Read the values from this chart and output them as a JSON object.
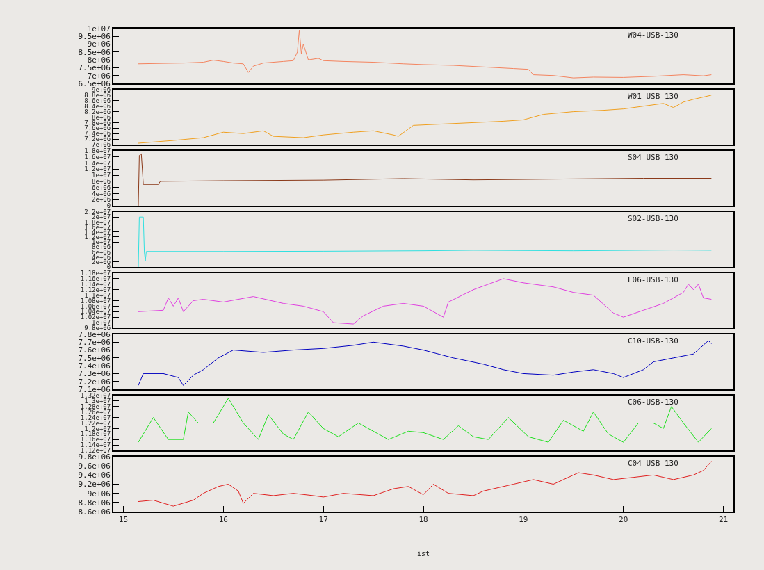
{
  "chart_data": [
    {
      "type": "line",
      "tick_labels": "y",
      "grid": false,
      "xlim": [
        14.9,
        21.1
      ],
      "ylim": [
        6500000,
        10000000
      ],
      "yticks": [
        {
          "value": 6500000,
          "label": "6.5e+06"
        },
        {
          "value": 7000000,
          "label": "7e+06"
        },
        {
          "value": 7500000,
          "label": "7.5e+06"
        },
        {
          "value": 8000000,
          "label": "8e+06"
        },
        {
          "value": 8500000,
          "label": "8.5e+06"
        },
        {
          "value": 9000000,
          "label": "9e+06"
        },
        {
          "value": 9500000,
          "label": "9.5e+06"
        },
        {
          "value": 10000000,
          "label": "1e+07"
        }
      ],
      "series": [
        {
          "name": "W04-USB-130",
          "color": "#f4845f",
          "x": [
            15.15,
            15.4,
            15.6,
            15.8,
            15.9,
            16.0,
            16.1,
            16.2,
            16.25,
            16.3,
            16.4,
            16.6,
            16.7,
            16.74,
            16.76,
            16.78,
            16.8,
            16.85,
            16.95,
            17.0,
            17.2,
            17.5,
            17.8,
            18.0,
            18.3,
            18.6,
            18.9,
            19.05,
            19.1,
            19.3,
            19.5,
            19.7,
            20.0,
            20.3,
            20.6,
            20.8,
            20.88
          ],
          "values": [
            7750000,
            7780000,
            7800000,
            7850000,
            7980000,
            7900000,
            7800000,
            7750000,
            7200000,
            7600000,
            7800000,
            7900000,
            7950000,
            8500000,
            9900000,
            8400000,
            9000000,
            8000000,
            8100000,
            7950000,
            7900000,
            7850000,
            7750000,
            7700000,
            7650000,
            7550000,
            7450000,
            7400000,
            7050000,
            7000000,
            6850000,
            6900000,
            6880000,
            6950000,
            7050000,
            6980000,
            7050000
          ]
        }
      ]
    },
    {
      "type": "line",
      "tick_labels": "y",
      "grid": false,
      "xlim": [
        14.9,
        21.1
      ],
      "ylim": [
        7000000,
        9000000
      ],
      "yticks": [
        {
          "value": 7000000,
          "label": "7e+06"
        },
        {
          "value": 7200000,
          "label": "7.2e+06"
        },
        {
          "value": 7400000,
          "label": "7.4e+06"
        },
        {
          "value": 7600000,
          "label": "7.6e+06"
        },
        {
          "value": 7800000,
          "label": "7.8e+06"
        },
        {
          "value": 8000000,
          "label": "8e+06"
        },
        {
          "value": 8200000,
          "label": "8.2e+06"
        },
        {
          "value": 8400000,
          "label": "8.4e+06"
        },
        {
          "value": 8600000,
          "label": "8.6e+06"
        },
        {
          "value": 8800000,
          "label": "8.8e+06"
        },
        {
          "value": 9000000,
          "label": "9e+06"
        }
      ],
      "series": [
        {
          "name": "W01-USB-130",
          "color": "#f0a020",
          "x": [
            15.15,
            15.5,
            15.8,
            16.0,
            16.2,
            16.4,
            16.5,
            16.8,
            17.0,
            17.3,
            17.5,
            17.7,
            17.75,
            17.9,
            18.2,
            18.5,
            18.8,
            19.0,
            19.2,
            19.5,
            19.8,
            20.0,
            20.2,
            20.4,
            20.5,
            20.6,
            20.7,
            20.88
          ],
          "values": [
            7050000,
            7150000,
            7250000,
            7450000,
            7400000,
            7500000,
            7300000,
            7250000,
            7350000,
            7450000,
            7500000,
            7350000,
            7300000,
            7700000,
            7750000,
            7800000,
            7850000,
            7900000,
            8100000,
            8200000,
            8250000,
            8300000,
            8400000,
            8500000,
            8350000,
            8550000,
            8650000,
            8800000
          ]
        }
      ]
    },
    {
      "type": "line",
      "tick_labels": "y",
      "grid": false,
      "xlim": [
        14.9,
        21.1
      ],
      "ylim": [
        0,
        18000000
      ],
      "yticks": [
        0,
        {
          "value": 2000000,
          "label": "2e+06"
        },
        {
          "value": 4000000,
          "label": "4e+06"
        },
        {
          "value": 6000000,
          "label": "6e+06"
        },
        {
          "value": 8000000,
          "label": "8e+06"
        },
        {
          "value": 10000000,
          "label": "1e+07"
        },
        {
          "value": 12000000,
          "label": "1.2e+07"
        },
        {
          "value": 14000000,
          "label": "1.4e+07"
        },
        {
          "value": 16000000,
          "label": "1.6e+07"
        },
        {
          "value": 18000000,
          "label": "1.8e+07"
        }
      ],
      "series": [
        {
          "name": "S04-USB-130",
          "color": "#8b3a1a",
          "x": [
            15.15,
            15.16,
            15.18,
            15.2,
            15.35,
            15.37,
            16.0,
            17.0,
            17.8,
            18.5,
            19.5,
            20.2,
            20.88
          ],
          "values": [
            0,
            16500000,
            17000000,
            7000000,
            7000000,
            8000000,
            8200000,
            8400000,
            8900000,
            8500000,
            8800000,
            9000000,
            9000000
          ]
        }
      ]
    },
    {
      "type": "line",
      "tick_labels": "y",
      "grid": false,
      "xlim": [
        14.9,
        21.1
      ],
      "ylim": [
        0,
        22000000
      ],
      "yticks": [
        0,
        {
          "value": 2000000,
          "label": "2e+06"
        },
        {
          "value": 4000000,
          "label": "4e+06"
        },
        {
          "value": 6000000,
          "label": "6e+06"
        },
        {
          "value": 8000000,
          "label": "8e+06"
        },
        {
          "value": 10000000,
          "label": "1e+07"
        },
        {
          "value": 12000000,
          "label": "1.2e+07"
        },
        {
          "value": 14000000,
          "label": "1.4e+07"
        },
        {
          "value": 16000000,
          "label": "1.6e+07"
        },
        {
          "value": 18000000,
          "label": "1.8e+07"
        },
        {
          "value": 20000000,
          "label": "2e+07"
        },
        {
          "value": 22000000,
          "label": "2.2e+07"
        }
      ],
      "series": [
        {
          "name": "S02-USB-130",
          "color": "#30e0e0",
          "x": [
            15.15,
            15.16,
            15.2,
            15.21,
            15.22,
            15.23,
            16.0,
            17.0,
            18.0,
            18.5,
            19.5,
            20.5,
            20.88
          ],
          "values": [
            0,
            20000000,
            20000000,
            6000000,
            2500000,
            6200000,
            6200000,
            6300000,
            6500000,
            6700000,
            6500000,
            6800000,
            6700000
          ]
        }
      ]
    },
    {
      "type": "line",
      "tick_labels": "y",
      "grid": false,
      "xlim": [
        14.9,
        21.1
      ],
      "ylim": [
        9800000,
        11800000
      ],
      "yticks": [
        {
          "value": 9800000,
          "label": "9.8e+06"
        },
        {
          "value": 10000000,
          "label": "1e+07"
        },
        {
          "value": 10200000,
          "label": "1.02e+07"
        },
        {
          "value": 10400000,
          "label": "1.04e+07"
        },
        {
          "value": 10600000,
          "label": "1.06e+07"
        },
        {
          "value": 10800000,
          "label": "1.08e+07"
        },
        {
          "value": 11000000,
          "label": "1.1e+07"
        },
        {
          "value": 11200000,
          "label": "1.12e+07"
        },
        {
          "value": 11400000,
          "label": "1.14e+07"
        },
        {
          "value": 11600000,
          "label": "1.16e+07"
        },
        {
          "value": 11800000,
          "label": "1.18e+07"
        }
      ],
      "series": [
        {
          "name": "E06-USB-130",
          "color": "#e040e0",
          "x": [
            15.15,
            15.4,
            15.45,
            15.5,
            15.55,
            15.6,
            15.7,
            15.8,
            16.0,
            16.3,
            16.6,
            16.8,
            17.0,
            17.1,
            17.3,
            17.4,
            17.6,
            17.8,
            18.0,
            18.2,
            18.25,
            18.5,
            18.8,
            19.0,
            19.3,
            19.5,
            19.7,
            19.9,
            20.0,
            20.2,
            20.4,
            20.6,
            20.65,
            20.7,
            20.75,
            20.8,
            20.88
          ],
          "values": [
            10400000,
            10450000,
            10900000,
            10600000,
            10900000,
            10400000,
            10800000,
            10850000,
            10750000,
            10950000,
            10700000,
            10600000,
            10400000,
            10000000,
            9950000,
            10250000,
            10600000,
            10700000,
            10600000,
            10200000,
            10750000,
            11200000,
            11600000,
            11450000,
            11300000,
            11100000,
            11000000,
            10350000,
            10200000,
            10450000,
            10700000,
            11100000,
            11400000,
            11200000,
            11400000,
            10900000,
            10850000
          ]
        }
      ]
    },
    {
      "type": "line",
      "tick_labels": "y",
      "grid": false,
      "xlim": [
        14.9,
        21.1
      ],
      "ylim": [
        7100000,
        7800000
      ],
      "yticks": [
        {
          "value": 7100000,
          "label": "7.1e+06"
        },
        {
          "value": 7200000,
          "label": "7.2e+06"
        },
        {
          "value": 7300000,
          "label": "7.3e+06"
        },
        {
          "value": 7400000,
          "label": "7.4e+06"
        },
        {
          "value": 7500000,
          "label": "7.5e+06"
        },
        {
          "value": 7600000,
          "label": "7.6e+06"
        },
        {
          "value": 7700000,
          "label": "7.7e+06"
        },
        {
          "value": 7800000,
          "label": "7.8e+06"
        }
      ],
      "series": [
        {
          "name": "C10-USB-130",
          "color": "#0000c0",
          "x": [
            15.15,
            15.2,
            15.4,
            15.55,
            15.6,
            15.7,
            15.8,
            15.95,
            16.1,
            16.4,
            16.7,
            17.0,
            17.3,
            17.5,
            17.8,
            18.0,
            18.3,
            18.6,
            18.8,
            19.0,
            19.3,
            19.5,
            19.7,
            19.9,
            20.0,
            20.2,
            20.3,
            20.5,
            20.7,
            20.85,
            20.88
          ],
          "values": [
            7150000,
            7300000,
            7300000,
            7250000,
            7150000,
            7280000,
            7350000,
            7500000,
            7600000,
            7570000,
            7600000,
            7620000,
            7660000,
            7700000,
            7650000,
            7600000,
            7500000,
            7420000,
            7350000,
            7300000,
            7280000,
            7320000,
            7350000,
            7300000,
            7250000,
            7350000,
            7450000,
            7500000,
            7550000,
            7720000,
            7680000
          ]
        }
      ]
    },
    {
      "type": "line",
      "tick_labels": "y",
      "grid": false,
      "xlim": [
        14.9,
        21.1
      ],
      "ylim": [
        11200000,
        13200000
      ],
      "yticks": [
        {
          "value": 11200000,
          "label": "1.12e+07"
        },
        {
          "value": 11400000,
          "label": "1.14e+07"
        },
        {
          "value": 11600000,
          "label": "1.16e+07"
        },
        {
          "value": 11800000,
          "label": "1.18e+07"
        },
        {
          "value": 12000000,
          "label": "1.2e+07"
        },
        {
          "value": 12200000,
          "label": "1.22e+07"
        },
        {
          "value": 12400000,
          "label": "1.24e+07"
        },
        {
          "value": 12600000,
          "label": "1.26e+07"
        },
        {
          "value": 12800000,
          "label": "1.28e+07"
        },
        {
          "value": 13000000,
          "label": "1.3e+07"
        },
        {
          "value": 13200000,
          "label": "1.32e+07"
        }
      ],
      "series": [
        {
          "name": "C06-USB-130",
          "color": "#20e020",
          "x": [
            15.15,
            15.3,
            15.45,
            15.6,
            15.65,
            15.75,
            15.9,
            16.05,
            16.2,
            16.35,
            16.45,
            16.6,
            16.7,
            16.85,
            17.0,
            17.15,
            17.35,
            17.5,
            17.65,
            17.85,
            18.0,
            18.2,
            18.35,
            18.5,
            18.65,
            18.85,
            19.05,
            19.25,
            19.4,
            19.6,
            19.7,
            19.85,
            20.0,
            20.15,
            20.3,
            20.4,
            20.48,
            20.6,
            20.75,
            20.88
          ],
          "values": [
            11500000,
            12400000,
            11600000,
            11600000,
            12600000,
            12200000,
            12200000,
            13100000,
            12200000,
            11600000,
            12500000,
            11800000,
            11600000,
            12600000,
            12000000,
            11700000,
            12200000,
            11900000,
            11600000,
            11900000,
            11850000,
            11600000,
            12100000,
            11700000,
            11600000,
            12400000,
            11700000,
            11500000,
            12300000,
            11900000,
            12600000,
            11800000,
            11500000,
            12200000,
            12200000,
            12000000,
            12800000,
            12200000,
            11500000,
            12000000
          ]
        }
      ]
    },
    {
      "type": "line",
      "grid": false,
      "xlabel": "ist",
      "xlim": [
        14.9,
        21.1
      ],
      "xticks": [
        15,
        16,
        17,
        18,
        19,
        20,
        21
      ],
      "ylim": [
        8600000,
        9800000
      ],
      "yticks": [
        {
          "value": 8600000,
          "label": "8.6e+06"
        },
        {
          "value": 8800000,
          "label": "8.8e+06"
        },
        {
          "value": 9000000,
          "label": "9e+06"
        },
        {
          "value": 9200000,
          "label": "9.2e+06"
        },
        {
          "value": 9400000,
          "label": "9.4e+06"
        },
        {
          "value": 9600000,
          "label": "9.6e+06"
        },
        {
          "value": 9800000,
          "label": "9.8e+06"
        }
      ],
      "series": [
        {
          "name": "C04-USB-130",
          "color": "#e02020",
          "x": [
            15.15,
            15.3,
            15.5,
            15.7,
            15.8,
            15.95,
            16.05,
            16.15,
            16.2,
            16.3,
            16.5,
            16.7,
            16.9,
            17.0,
            17.2,
            17.5,
            17.7,
            17.85,
            18.0,
            18.1,
            18.25,
            18.5,
            18.6,
            18.9,
            19.1,
            19.3,
            19.55,
            19.7,
            19.9,
            20.1,
            20.3,
            20.5,
            20.7,
            20.8,
            20.88
          ],
          "values": [
            8820000,
            8850000,
            8720000,
            8850000,
            9000000,
            9150000,
            9200000,
            9050000,
            8780000,
            9000000,
            8950000,
            9000000,
            8950000,
            8920000,
            9000000,
            8950000,
            9100000,
            9150000,
            8970000,
            9200000,
            9000000,
            8950000,
            9050000,
            9200000,
            9300000,
            9200000,
            9450000,
            9400000,
            9300000,
            9350000,
            9400000,
            9300000,
            9400000,
            9500000,
            9700000
          ]
        }
      ]
    }
  ]
}
